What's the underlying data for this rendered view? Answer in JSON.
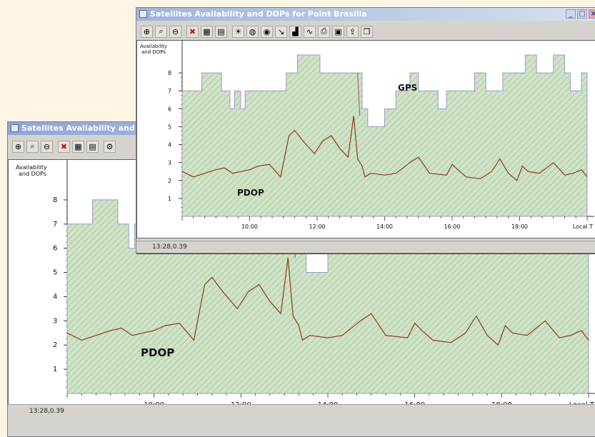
{
  "colors": {
    "fill": "#cfe3c6",
    "hatch": "#8fae86",
    "gps_line": "#9b9bc4",
    "pdop_line": "#8b3a1a",
    "spike": "#b84a6a"
  },
  "back_window": {
    "title": "Satellites Availability and",
    "toolbar_icons": [
      "zoom-in-icon",
      "zoom-icon",
      "zoom-out-icon",
      "delete-icon",
      "grid-icon",
      "document-icon",
      "settings-icon"
    ],
    "y_label_line1": "Availability",
    "y_label_line2": "and DOPs",
    "pdop_label": "PDOP",
    "x_unit": "Local T",
    "status": "13:28,0.39"
  },
  "front_window": {
    "title": "Satellites Availability and DOPs for Point Brasilia",
    "toolbar_icons": [
      "zoom-in-icon",
      "zoom-icon",
      "zoom-out-icon",
      "delete-icon",
      "grid-icon",
      "document-icon",
      "sun-icon",
      "globe-icon",
      "sky-icon",
      "arrow-icon",
      "chart-icon",
      "chart-line-icon",
      "print-icon",
      "preview-icon",
      "export-icon",
      "copy-icon"
    ],
    "y_label_line1": "Availability",
    "y_label_line2": "and DOPs",
    "gps_label": "GPS",
    "pdop_label": "PDOP",
    "x_unit": "Local T",
    "status": "13:28,0.39"
  },
  "chart_data": {
    "type": "area",
    "xlabel": "Local T",
    "ylabel": "Availability and DOPs",
    "x_ticks": [
      "10:00",
      "12:00",
      "14:00",
      "16:00",
      "18:00"
    ],
    "y_ticks": [
      1,
      2,
      3,
      4,
      5,
      6,
      7,
      8
    ],
    "x_range": [
      "08:00",
      "20:00"
    ],
    "y_range": [
      0,
      9
    ],
    "series": [
      {
        "name": "GPS",
        "x": [
          "08:00",
          "08:10",
          "08:35",
          "09:10",
          "09:25",
          "09:33",
          "09:44",
          "09:52",
          "10:00",
          "10:30",
          "11:05",
          "11:25",
          "12:05",
          "12:55",
          "13:20",
          "13:30",
          "14:00",
          "14:20",
          "14:45",
          "15:00",
          "15:35",
          "15:50",
          "16:40",
          "17:00",
          "17:30",
          "17:40",
          "17:50",
          "18:10",
          "18:30",
          "19:00",
          "19:20",
          "19:30",
          "19:50",
          "20:00"
        ],
        "values": [
          7,
          7,
          8,
          7,
          6,
          7,
          6,
          7,
          7,
          7,
          8,
          9,
          8,
          8,
          6,
          5,
          6,
          7,
          8,
          7,
          6,
          7,
          8,
          7,
          8,
          8,
          8,
          9,
          8,
          9,
          8,
          7,
          8,
          7
        ]
      },
      {
        "name": "PDOP",
        "x": [
          "08:00",
          "08:20",
          "08:40",
          "09:00",
          "09:15",
          "09:30",
          "09:45",
          "10:00",
          "10:15",
          "10:35",
          "10:55",
          "11:10",
          "11:20",
          "11:35",
          "11:55",
          "12:10",
          "12:25",
          "12:40",
          "12:55",
          "13:05",
          "13:12",
          "13:20",
          "13:25",
          "13:35",
          "14:00",
          "14:20",
          "14:45",
          "15:00",
          "15:20",
          "15:50",
          "16:00",
          "16:10",
          "16:25",
          "16:50",
          "17:10",
          "17:25",
          "17:40",
          "17:55",
          "18:05",
          "18:15",
          "18:35",
          "19:00",
          "19:20",
          "19:35",
          "19:50",
          "20:00"
        ],
        "values": [
          2.5,
          2.2,
          2.4,
          2.6,
          2.7,
          2.4,
          2.5,
          2.6,
          2.8,
          2.9,
          2.2,
          4.5,
          4.8,
          4.2,
          3.5,
          4.2,
          4.5,
          3.8,
          3.3,
          5.6,
          3.2,
          2.8,
          2.2,
          2.4,
          2.3,
          2.4,
          3.0,
          3.3,
          2.4,
          2.3,
          2.9,
          2.6,
          2.2,
          2.1,
          2.5,
          3.2,
          2.4,
          2.0,
          2.8,
          2.5,
          2.4,
          3.0,
          2.3,
          2.4,
          2.6,
          2.2
        ]
      }
    ]
  }
}
